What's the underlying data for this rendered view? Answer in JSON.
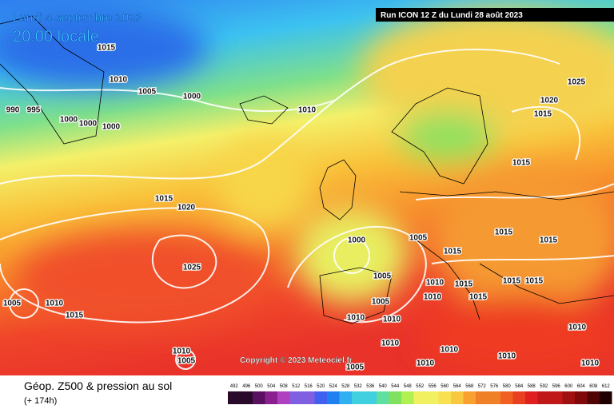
{
  "header": {
    "date": "Lundi 4 septembre 2023",
    "time": "20:00 locale",
    "run": "Run ICON 12 Z du Lundi 28 août 2023"
  },
  "copyright": "Copyright © 2023 Meteociel.fr",
  "footer": {
    "title": "Géop. Z500 & pression au sol",
    "lead": "(+ 174h)"
  },
  "isobar_labels": [
    1015,
    1010,
    1005,
    1000,
    990,
    995,
    1000,
    1000,
    1000,
    1010,
    1015,
    1020,
    1025,
    1005,
    1010,
    1015,
    1000,
    1005,
    1005,
    1005,
    1010,
    1010,
    1010,
    1010,
    1015,
    1015,
    1015,
    1015,
    1015,
    1015,
    1015,
    1020,
    1025,
    1010,
    1005,
    1010,
    1010,
    1010,
    1010,
    1005,
    1010,
    1015,
    1015,
    1010
  ],
  "scale": [
    492,
    496,
    500,
    504,
    508,
    512,
    516,
    520,
    524,
    528,
    532,
    536,
    540,
    544,
    548,
    552,
    556,
    560,
    564,
    568,
    572,
    576,
    580,
    584,
    588,
    592,
    596,
    600,
    604,
    608,
    612
  ]
}
